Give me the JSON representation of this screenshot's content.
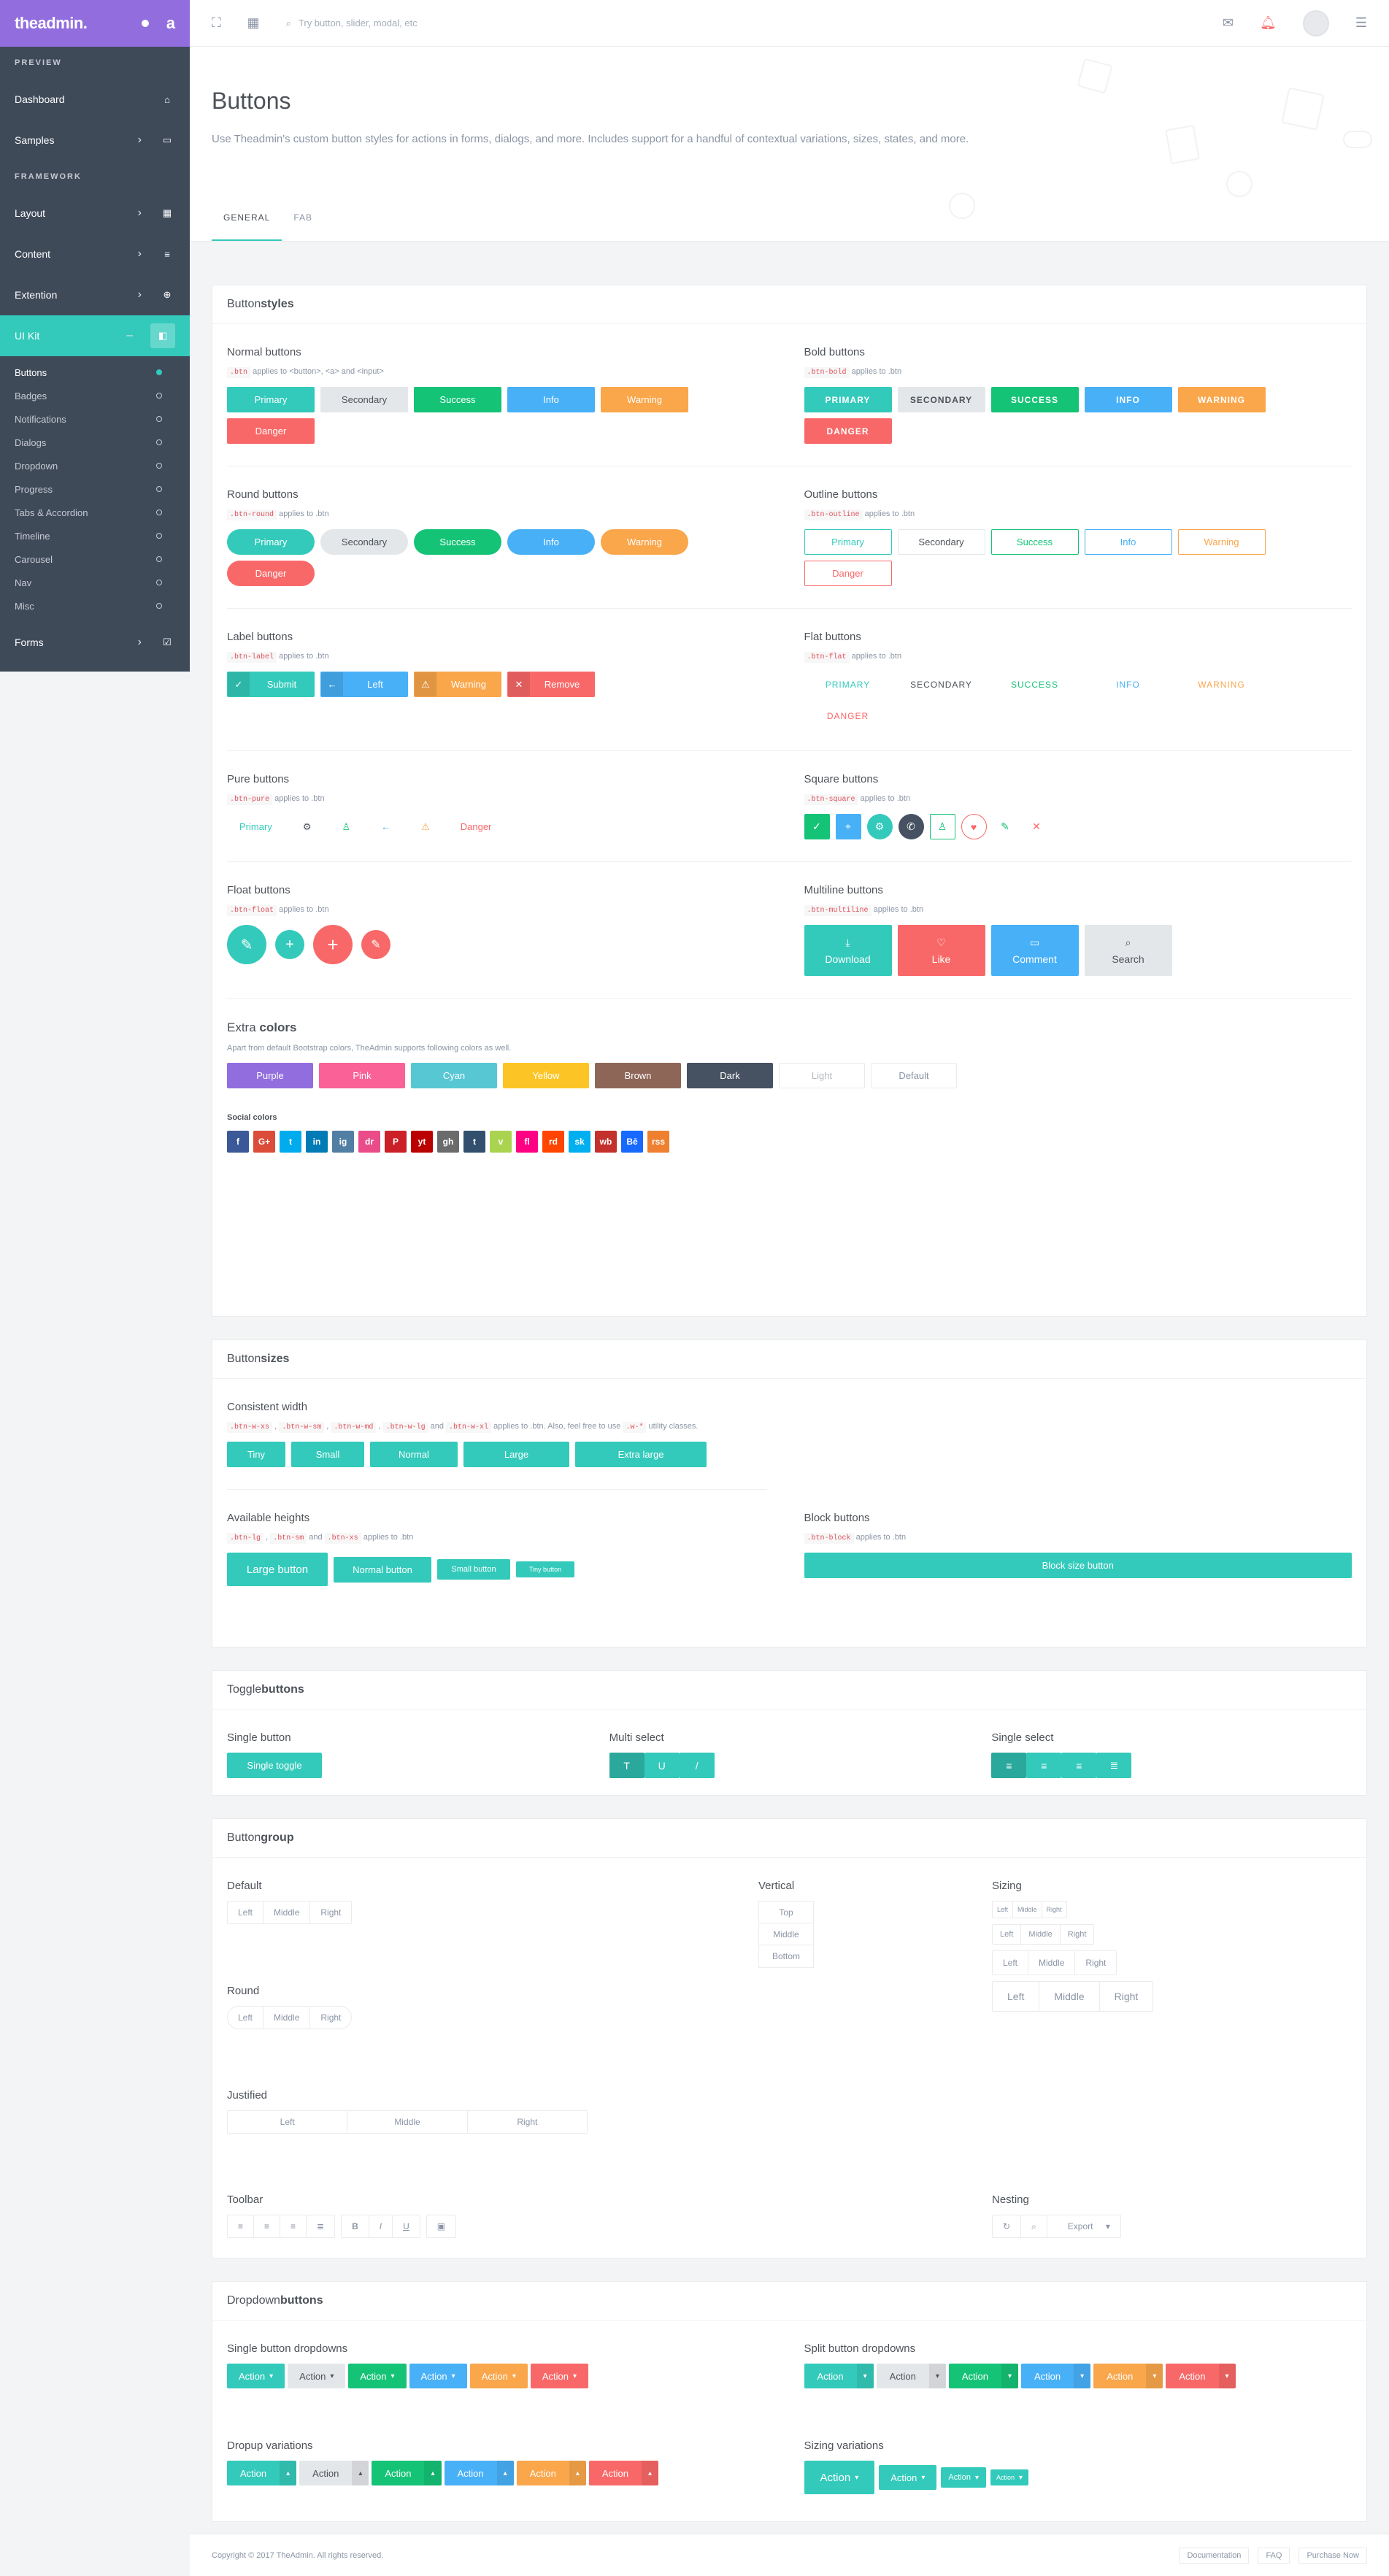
{
  "brand": {
    "logo": "theadmin."
  },
  "sidebar": {
    "preview_title": "PREVIEW",
    "framework_title": "FRAMEWORK",
    "items_preview": [
      {
        "label": "Dashboard"
      },
      {
        "label": "Samples"
      }
    ],
    "items_framework": [
      {
        "label": "Layout"
      },
      {
        "label": "Content"
      },
      {
        "label": "Extention"
      },
      {
        "label": "UI Kit"
      }
    ],
    "uikit_sub": [
      "Buttons",
      "Badges",
      "Notifications",
      "Dialogs",
      "Dropdown",
      "Progress",
      "Tabs & Accordion",
      "Timeline",
      "Carousel",
      "Nav",
      "Misc"
    ],
    "forms": "Forms"
  },
  "topbar": {
    "search_placeholder": "Try button, slider, modal, etc"
  },
  "header": {
    "title": "Buttons",
    "description": "Use Theadmin's custom button styles for actions in forms, dialogs, and more. Includes support for a handful of contextual variations, sizes, states, and more.",
    "tabs": [
      "GENERAL",
      "FAB"
    ]
  },
  "styles": {
    "title_a": "Button ",
    "title_b": "styles",
    "normal": {
      "title": "Normal buttons",
      "code": ".btn",
      "hint": " applies to <button>, <a> and <input>"
    },
    "bold": {
      "title": "Bold buttons",
      "code": ".btn-bold",
      "hint": " applies to .btn"
    },
    "round": {
      "title": "Round buttons",
      "code": ".btn-round",
      "hint": " applies to .btn"
    },
    "outline": {
      "title": "Outline buttons",
      "code": ".btn-outline",
      "hint": " applies to .btn"
    },
    "label": {
      "title": "Label buttons",
      "code": ".btn-label",
      "hint": " applies to .btn"
    },
    "flat": {
      "title": "Flat buttons",
      "code": ".btn-flat",
      "hint": " applies to .btn"
    },
    "pure": {
      "title": "Pure buttons",
      "code": ".btn-pure",
      "hint": " applies to .btn"
    },
    "square": {
      "title": "Square buttons",
      "code": ".btn-square",
      "hint": " applies to .btn"
    },
    "float": {
      "title": "Float buttons",
      "code": ".btn-float",
      "hint": " applies to .btn"
    },
    "multiline": {
      "title": "Multiline buttons",
      "code": ".btn-multiline",
      "hint": " applies to .btn"
    },
    "labels": [
      "Primary",
      "Secondary",
      "Success",
      "Info",
      "Warning",
      "Danger"
    ],
    "labels_upper": [
      "PRIMARY",
      "SECONDARY",
      "SUCCESS",
      "INFO",
      "WARNING",
      "DANGER"
    ],
    "label_btns": [
      "Submit",
      "Left",
      "Warning",
      "Remove"
    ],
    "pure_labels": {
      "primary": "Primary",
      "danger": "Danger"
    },
    "multi_labels": [
      "Download",
      "Like",
      "Comment",
      "Search"
    ],
    "extra_title_a": "Extra ",
    "extra_title_b": "colors",
    "extra_hint": "Apart from default Bootstrap colors, TheAdmin supports following colors as well.",
    "extra_labels": [
      "Purple",
      "Pink",
      "Cyan",
      "Yellow",
      "Brown",
      "Dark",
      "Light",
      "Default"
    ],
    "social_title": "Social colors",
    "social": [
      "f",
      "G+",
      "t",
      "in",
      "ig",
      "dr",
      "P",
      "yt",
      "gh",
      "t",
      "v",
      "fl",
      "rd",
      "sk",
      "wb",
      "Bē",
      "rss"
    ]
  },
  "sizes": {
    "title_a": "Button ",
    "title_b": "sizes",
    "consistent": {
      "title": "Consistent width",
      "codes": [
        ".btn-w-xs",
        ".btn-w-sm",
        ".btn-w-md",
        ".btn-w-lg",
        ".btn-w-xl"
      ],
      "hint_a": " applies to .btn. Also, feel free to use ",
      "code_b": ".w-*",
      "hint_b": " utility classes.",
      "buttons": [
        "Tiny",
        "Small",
        "Normal",
        "Large",
        "Extra large"
      ]
    },
    "heights": {
      "title": "Available heights",
      "codes": [
        ".btn-lg",
        ".btn-sm",
        ".btn-xs"
      ],
      "hint": " applies to .btn",
      "buttons": [
        "Large button",
        "Normal button",
        "Small button",
        "Tiny button"
      ]
    },
    "block": {
      "title": "Block buttons",
      "code": ".btn-block",
      "hint": " applies to .btn",
      "button": "Block size button"
    }
  },
  "toggle": {
    "title_a": "Toggle ",
    "title_b": "buttons",
    "single": "Single button",
    "single_btn": "Single toggle",
    "multi": "Multi select",
    "single_select": "Single select"
  },
  "group": {
    "title_a": "Button ",
    "title_b": "group",
    "default": "Default",
    "round": "Round",
    "justified": "Justified",
    "toolbar": "Toolbar",
    "vertical": "Vertical",
    "sizing": "Sizing",
    "nesting": "Nesting",
    "lmr": [
      "Left",
      "Middle",
      "Right"
    ],
    "tmb": [
      "Top",
      "Middle",
      "Bottom"
    ],
    "export": "Export"
  },
  "dropdown": {
    "title_a": "Dropdown ",
    "title_b": "buttons",
    "single": "Single button dropdowns",
    "split": "Split button dropdowns",
    "dropup": "Dropup variations",
    "sizing": "Sizing variations",
    "action": "Action"
  },
  "footer": {
    "copyright": "Copyright © 2017 TheAdmin. All rights reserved.",
    "links": [
      "Documentation",
      "FAQ",
      "Purchase Now"
    ]
  }
}
